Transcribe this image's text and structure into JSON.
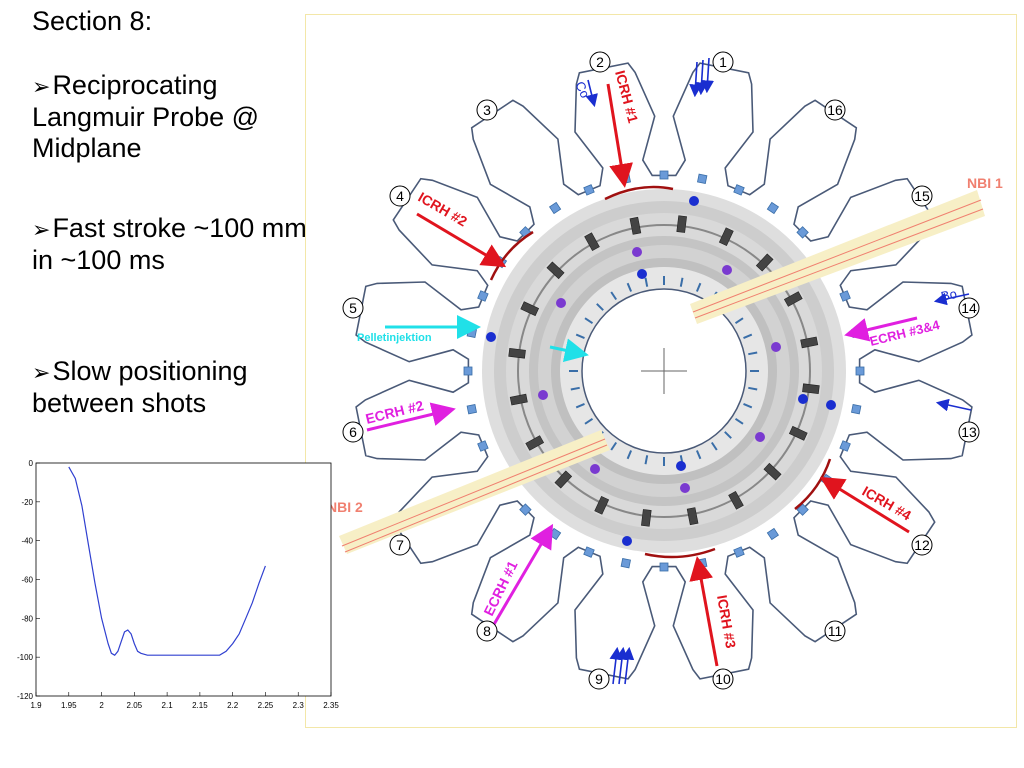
{
  "slide": {
    "title": "Section 8:",
    "bullets": [
      {
        "text": "Reciprocating Langmuir Probe @ Midplane"
      },
      {
        "text": "Fast stroke ~100 mm in ~100 ms"
      },
      {
        "text": "Slow positioning between shots"
      }
    ],
    "bullet_glyph": "➢"
  },
  "diagram": {
    "ports": [
      "1",
      "2",
      "3",
      "4",
      "5",
      "6",
      "7",
      "8",
      "9",
      "10",
      "11",
      "12",
      "13",
      "14",
      "15",
      "16"
    ],
    "heating_labels": {
      "icrh1": "ICRH #1",
      "icrh2": "ICRH #2",
      "icrh3": "ICRH #3",
      "icrh4": "ICRH #4",
      "ecrh1": "ECRH #1",
      "ecrh2": "ECRH #2",
      "ecrh34": "ECRH #3&4",
      "nbi1": "NBI 1",
      "nbi2": "NBI 2",
      "pellet": "Pelletinjektion",
      "co": "Co",
      "bo": "Bo"
    },
    "colors": {
      "icrh": "#e0141e",
      "ecrh": "#e020e0",
      "nbi": "#f08070",
      "pellet": "#20e0e8",
      "blue": "#1a2ed0"
    }
  },
  "chart_data": {
    "type": "line",
    "title": "",
    "xlabel": "",
    "ylabel": "",
    "xlim": [
      1.9,
      2.35
    ],
    "ylim": [
      -120,
      0
    ],
    "xticks": [
      "1.9",
      "1.95",
      "2",
      "2.05",
      "2.1",
      "2.15",
      "2.2",
      "2.25",
      "2.3",
      "2.35"
    ],
    "yticks": [
      "0",
      "-20",
      "-40",
      "-60",
      "-80",
      "-100",
      "-120"
    ],
    "series": [
      {
        "color": "#3040d0",
        "x": [
          1.95,
          1.96,
          1.97,
          1.98,
          1.99,
          2.0,
          2.01,
          2.015,
          2.02,
          2.025,
          2.03,
          2.035,
          2.04,
          2.045,
          2.05,
          2.055,
          2.06,
          2.07,
          2.08,
          2.1,
          2.12,
          2.14,
          2.16,
          2.18,
          2.19,
          2.2,
          2.21,
          2.22,
          2.23,
          2.24,
          2.25
        ],
        "y": [
          -2,
          -8,
          -22,
          -42,
          -62,
          -80,
          -93,
          -98,
          -99,
          -97,
          -92,
          -87,
          -86,
          -88,
          -93,
          -97,
          -98,
          -99,
          -99,
          -99,
          -99,
          -99,
          -99,
          -99,
          -97,
          -93,
          -88,
          -80,
          -72,
          -62,
          -53
        ]
      }
    ]
  }
}
